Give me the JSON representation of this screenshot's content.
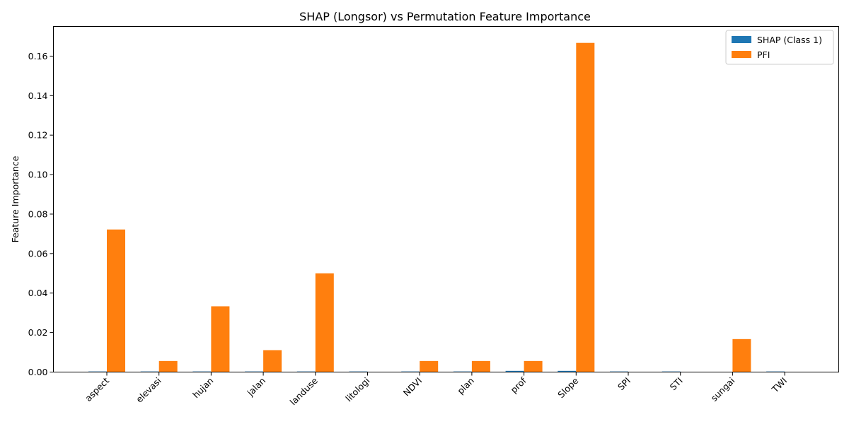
{
  "chart_data": {
    "type": "bar",
    "title": "SHAP (Longsor) vs Permutation Feature Importance",
    "xlabel": "",
    "ylabel": "Feature Importance",
    "categories": [
      "aspect",
      "elevasi",
      "hujan",
      "jalan",
      "landuse",
      "litologi",
      "NDVI",
      "plan",
      "prof",
      "Slope",
      "SPI",
      "STI",
      "sungai",
      "TWI"
    ],
    "series": [
      {
        "name": "SHAP (Class 1)",
        "color": "#1f77b4",
        "values": [
          0.0003,
          0.0003,
          0.0003,
          0.0003,
          0.0003,
          0.0003,
          0.0003,
          0.0003,
          0.0006,
          0.0006,
          0.0003,
          0.0003,
          0.0,
          0.0003
        ]
      },
      {
        "name": "PFI",
        "color": "#ff7f0e",
        "values": [
          0.0722,
          0.0056,
          0.0333,
          0.0111,
          0.05,
          0.0,
          0.0056,
          0.0056,
          0.0056,
          0.1667,
          0.0,
          0.0,
          0.0167,
          0.0
        ]
      }
    ],
    "yticks": [
      "0.00",
      "0.02",
      "0.04",
      "0.06",
      "0.08",
      "0.10",
      "0.12",
      "0.14",
      "0.16"
    ],
    "ylim": [
      0,
      0.175
    ],
    "xtick_rotation": 45,
    "grid": false,
    "legend_position": "top-right"
  }
}
